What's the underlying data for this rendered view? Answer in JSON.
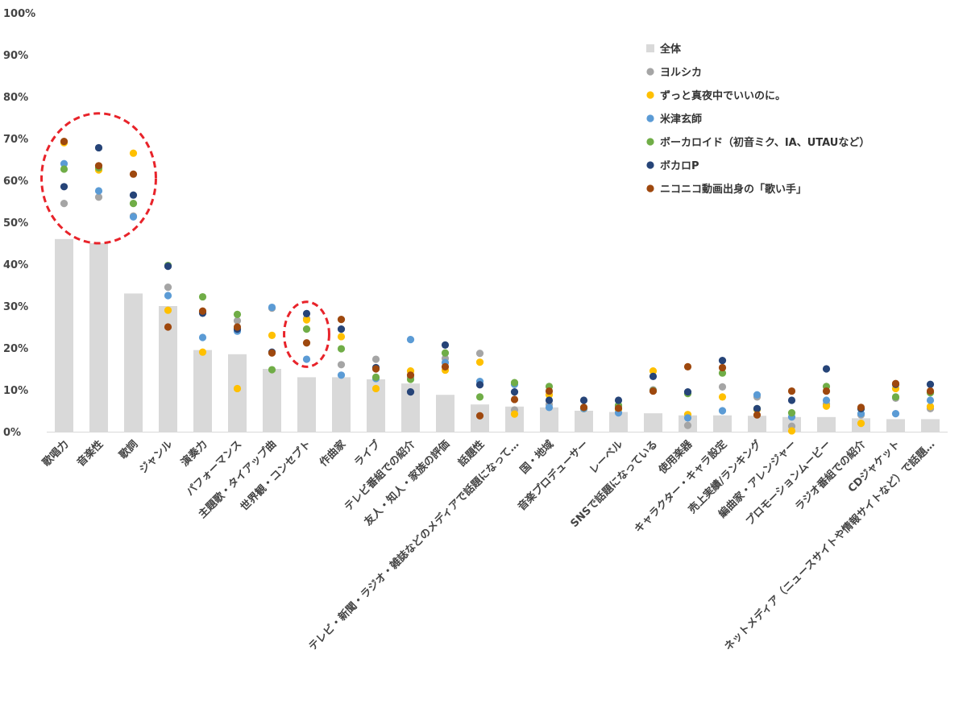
{
  "chart_data": {
    "type": "bar",
    "title": "",
    "xlabel": "",
    "ylabel": "",
    "ylim": [
      0,
      100
    ],
    "yticks": [
      0,
      10,
      20,
      30,
      40,
      50,
      60,
      70,
      80,
      90,
      100
    ],
    "ytick_labels": [
      "0%",
      "10%",
      "20%",
      "30%",
      "40%",
      "50%",
      "60%",
      "70%",
      "80%",
      "90%",
      "100%"
    ],
    "grid": false,
    "legend_position": "top-right",
    "categories": [
      "歌唱力",
      "音楽性",
      "歌詞",
      "ジャンル",
      "演奏力",
      "パフォーマンス",
      "主題歌・タイアップ曲",
      "世界観・コンセプト",
      "作曲家",
      "ライブ",
      "テレビ番組での紹介",
      "友人・知人・家族の評価",
      "話題性",
      "テレビ・新聞・ラジオ・雑誌などのメディアで話題になって…",
      "国・地域",
      "音楽プロデューサー",
      "レーベル",
      "SNSで話題になっている",
      "使用楽器",
      "キャラクター・キャラ設定",
      "売上実績/ランキング",
      "編曲家・アレンジャー",
      "プロモーションムービー",
      "ラジオ番組での紹介",
      "CDジャケット",
      "ネットメディア（ニュースサイトや情報サイトなど）で話題…"
    ],
    "series": [
      {
        "name": "全体",
        "kind": "bar",
        "color": "#d9d9d9",
        "values": [
          46,
          45,
          33,
          30,
          19.5,
          18.5,
          15,
          13,
          13,
          12.5,
          11.5,
          8.8,
          6.5,
          6,
          5.8,
          5,
          4.7,
          4.4,
          3.9,
          3.9,
          3.8,
          3.5,
          3.5,
          3.2,
          3,
          3
        ]
      },
      {
        "name": "ヨルシカ",
        "kind": "marker",
        "color": "#a5a5a5",
        "values": [
          54.5,
          56,
          51.5,
          34.5,
          28.5,
          26.5,
          29.5,
          27,
          16,
          17.3,
          13,
          17.5,
          18.7,
          5.2,
          6.5,
          5.5,
          6,
          10,
          1.5,
          10.7,
          8.3,
          1.3,
          6.6,
          4,
          8,
          5.5
        ]
      },
      {
        "name": "ずっと真夜中でいいのに。",
        "kind": "marker",
        "color": "#ffc000",
        "values": [
          69,
          62.5,
          66.5,
          29,
          19,
          10.3,
          23,
          26.7,
          22.7,
          10.3,
          14.5,
          14.7,
          16.6,
          4.2,
          8.8,
          5.5,
          5.3,
          14.5,
          4.1,
          8.3,
          5.3,
          0.2,
          6.1,
          2,
          10.3,
          6
        ]
      },
      {
        "name": "米津玄師",
        "kind": "marker",
        "color": "#5b9bd5",
        "values": [
          64,
          57.5,
          51.3,
          32.5,
          22.5,
          24,
          29.7,
          17.3,
          13.5,
          12.7,
          22,
          16.5,
          12,
          11.3,
          5.8,
          5.5,
          4.5,
          9.8,
          3.3,
          5,
          8.8,
          3.5,
          7.5,
          4.3,
          4.3,
          7.5
        ]
      },
      {
        "name": "ボーカロイド（初音ミク、IA、UTAUなど）",
        "kind": "marker",
        "color": "#70ad47",
        "values": [
          62.7,
          63,
          54.5,
          39.7,
          32.2,
          28,
          14.8,
          24.5,
          19.8,
          13,
          12.5,
          18.8,
          8.3,
          11.7,
          10.8,
          5.8,
          6.3,
          9.8,
          9.1,
          14,
          5.5,
          4.5,
          10.8,
          5.5,
          8.3,
          9.3
        ]
      },
      {
        "name": "ボカロP",
        "kind": "marker",
        "color": "#264478",
        "values": [
          58.5,
          67.8,
          56.5,
          39.5,
          28.3,
          24.5,
          19,
          28.2,
          24.5,
          15.3,
          9.5,
          20.7,
          11.2,
          9.5,
          7.5,
          7.5,
          7.5,
          13.2,
          9.5,
          17,
          5.5,
          7.5,
          15,
          5.5,
          11.3,
          11.3
        ]
      },
      {
        "name": "ニコニコ動画出身の「歌い手」",
        "kind": "marker",
        "color": "#9e480e",
        "values": [
          69.3,
          63.5,
          61.5,
          25,
          28.8,
          25,
          18.8,
          21.2,
          26.8,
          15,
          13.5,
          15.5,
          3.8,
          7.7,
          9.7,
          5.8,
          5.6,
          9.7,
          15.5,
          15.3,
          4,
          9.7,
          9.7,
          5.8,
          11.5,
          9.7
        ]
      }
    ],
    "annotations": [
      {
        "type": "dashed-circle",
        "color": "#e8232a",
        "covers_categories": [
          "歌唱力",
          "音楽性",
          "歌詞"
        ],
        "value_range": [
          45,
          76
        ]
      },
      {
        "type": "dashed-circle",
        "color": "#e8232a",
        "covers_categories": [
          "世界観・コンセプト"
        ],
        "value_range": [
          15.5,
          31
        ]
      }
    ]
  }
}
